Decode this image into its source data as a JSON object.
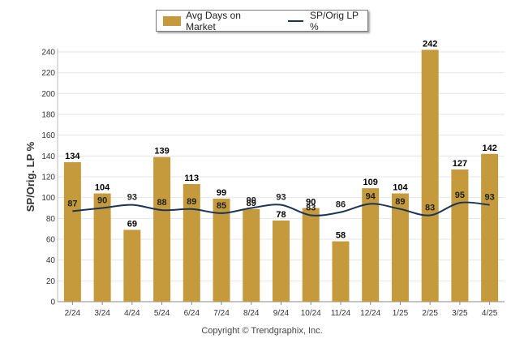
{
  "chart_data": {
    "type": "bar",
    "categories": [
      "2/24",
      "3/24",
      "4/24",
      "5/24",
      "6/24",
      "7/24",
      "8/24",
      "9/24",
      "10/24",
      "11/24",
      "12/24",
      "1/25",
      "2/25",
      "3/25",
      "4/25"
    ],
    "series": [
      {
        "name": "Avg Days on Market",
        "type": "bar",
        "color": "#C49A3D",
        "values": [
          134,
          104,
          69,
          139,
          113,
          99,
          89,
          78,
          90,
          58,
          109,
          104,
          242,
          127,
          142
        ]
      },
      {
        "name": "SP/Orig LP %",
        "type": "line",
        "color": "#1B3556",
        "values": [
          87,
          90,
          93,
          88,
          89,
          85,
          90,
          93,
          83,
          86,
          94,
          89,
          83,
          95,
          93
        ]
      }
    ],
    "ylabel": "SP/Orig. LP %",
    "yticks": [
      0,
      20,
      40,
      60,
      80,
      100,
      120,
      140,
      160,
      180,
      200,
      220,
      240
    ],
    "ylim": [
      0,
      240
    ],
    "grid": true,
    "legend_position": "top-center"
  },
  "copyright": "Copyright © Trendgraphix, Inc."
}
